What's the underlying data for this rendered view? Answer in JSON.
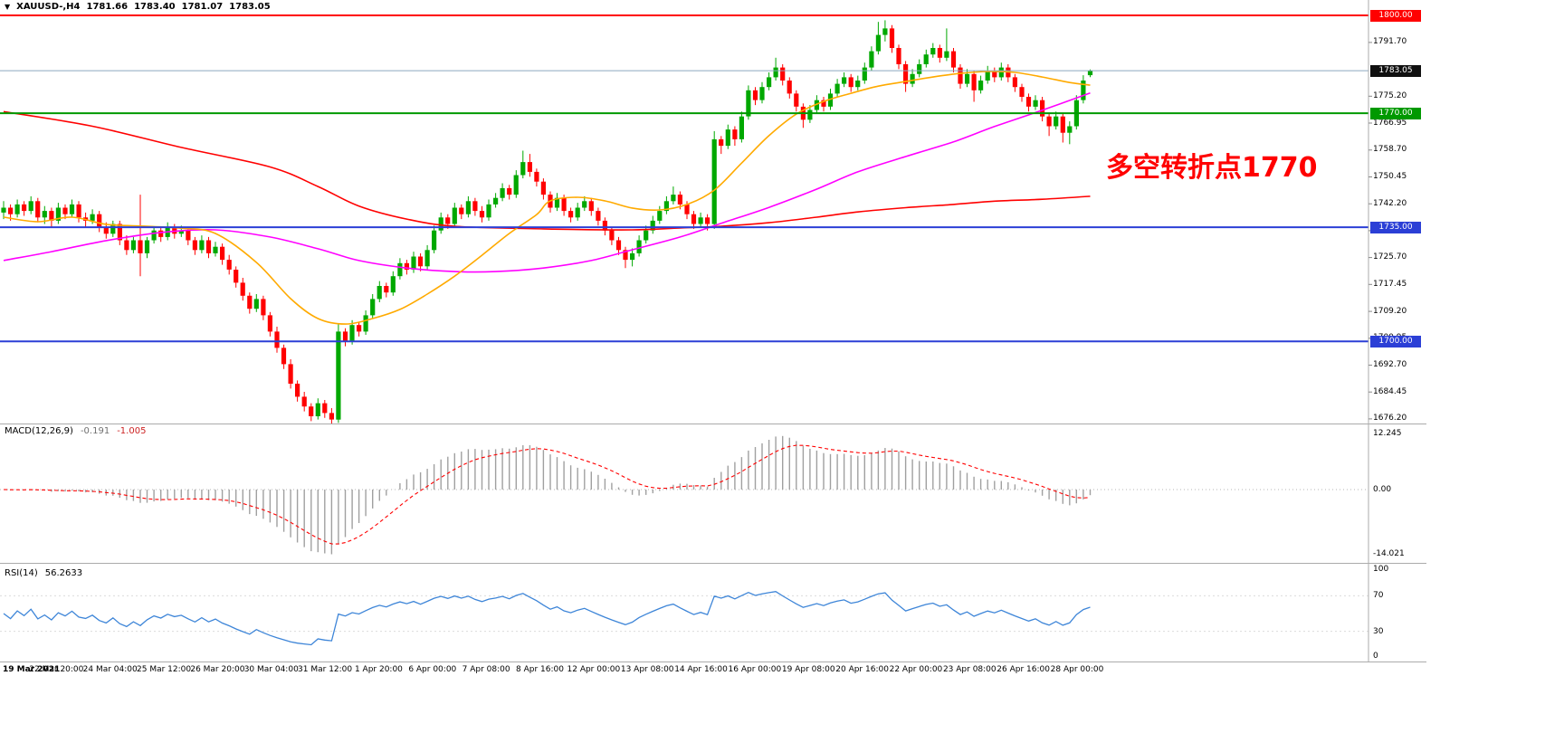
{
  "header": {
    "dropdown_icon": "▼",
    "symbol": "XAUUSD-,H4",
    "open": "1781.66",
    "high": "1783.40",
    "low": "1781.07",
    "close": "1783.05"
  },
  "annotation": {
    "text": "多空转折点1770",
    "color": "#ff0000"
  },
  "colors": {
    "up_candle": "#00a800",
    "down_candle": "#ff0000",
    "macd_histogram": "#a0a0a0",
    "macd_signal": "#ff0000",
    "rsi_line": "#3d85d8",
    "separator": "#ababab"
  },
  "chart_data": {
    "type": "candlestick",
    "symbol": "XAUUSD-",
    "timeframe": "H4",
    "title": "XAUUSD-,H4",
    "current_bar": {
      "open": 1781.66,
      "high": 1783.4,
      "low": 1781.07,
      "close": 1783.05
    },
    "price_range": [
      1674.8,
      1800.8
    ],
    "y_axis_ticks": [
      "1791.70",
      "1775.20",
      "1766.95",
      "1758.70",
      "1750.45",
      "1742.20",
      "1733.95",
      "1725.70",
      "1717.45",
      "1709.20",
      "1700.95",
      "1692.70",
      "1684.45",
      "1676.20"
    ],
    "x_axis_labels": [
      "19 Mar 2021",
      "22 Mar 20:00",
      "24 Mar 04:00",
      "25 Mar 12:00",
      "26 Mar 20:00",
      "30 Mar 04:00",
      "31 Mar 12:00",
      "1 Apr 20:00",
      "6 Apr 00:00",
      "7 Apr 08:00",
      "8 Apr 16:00",
      "12 Apr 00:00",
      "13 Apr 08:00",
      "14 Apr 16:00",
      "16 Apr 00:00",
      "19 Apr 08:00",
      "20 Apr 16:00",
      "22 Apr 00:00",
      "23 Apr 08:00",
      "26 Apr 16:00",
      "28 Apr 00:00"
    ],
    "price_lines": [
      {
        "label": "1800.00",
        "value": 1800,
        "color": "#ff0000"
      },
      {
        "label": "1770.00",
        "value": 1770,
        "color": "#009900"
      },
      {
        "label": "1735.00",
        "value": 1735,
        "color": "#2b3fd6"
      },
      {
        "label": "1700.00",
        "value": 1700,
        "color": "#2b3fd6"
      }
    ],
    "current_price_line": {
      "label": "1783.05",
      "value": 1783.05,
      "line_color": "#8ca6bf",
      "badge_color": "#101010"
    },
    "macd": {
      "label": "MACD(12,26,9)",
      "fast": 12,
      "slow": 26,
      "signal": 9,
      "value_main": "-0.191",
      "value_signal": "-1.005",
      "scale_labels": [
        "12.245",
        "0.00",
        "-14.021"
      ],
      "range": [
        -14.021,
        12.245
      ]
    },
    "rsi": {
      "label": "RSI(14)",
      "period": 14,
      "value": "56.2633",
      "scale_labels": [
        "100",
        "70",
        "30",
        "0"
      ],
      "levels": [
        70,
        30
      ],
      "range": [
        0,
        100
      ]
    },
    "moving_averages": [
      {
        "name": "ma-slow-red-line",
        "color": "#ff0000",
        "points": [
          [
            0,
            1770.5
          ],
          [
            13,
            1766
          ],
          [
            26,
            1759.5
          ],
          [
            39,
            1753.5
          ],
          [
            46,
            1747.5
          ],
          [
            52,
            1741.5
          ],
          [
            59,
            1737.5
          ],
          [
            66,
            1735.3
          ],
          [
            79,
            1734.5
          ],
          [
            92,
            1734.2
          ],
          [
            99,
            1734.8
          ],
          [
            105,
            1735.3
          ],
          [
            112,
            1736.4
          ],
          [
            119,
            1738.1
          ],
          [
            125,
            1739.7
          ],
          [
            132,
            1741
          ],
          [
            139,
            1742
          ],
          [
            145,
            1743
          ],
          [
            152,
            1743.6
          ],
          [
            159,
            1744.5
          ]
        ]
      },
      {
        "name": "ma-mid-magenta-line",
        "color": "#ff00ff",
        "points": [
          [
            0,
            1724.8
          ],
          [
            7,
            1727.5
          ],
          [
            15,
            1730.9
          ],
          [
            23,
            1733.4
          ],
          [
            31,
            1734.2
          ],
          [
            39,
            1732
          ],
          [
            46,
            1728.4
          ],
          [
            52,
            1724.8
          ],
          [
            59,
            1722.5
          ],
          [
            66,
            1721.4
          ],
          [
            72,
            1721.4
          ],
          [
            79,
            1722.5
          ],
          [
            86,
            1724.8
          ],
          [
            92,
            1728.1
          ],
          [
            99,
            1732
          ],
          [
            105,
            1736.2
          ],
          [
            112,
            1741.1
          ],
          [
            119,
            1746.7
          ],
          [
            125,
            1752
          ],
          [
            132,
            1756.7
          ],
          [
            139,
            1761.2
          ],
          [
            145,
            1765.9
          ],
          [
            152,
            1770.9
          ],
          [
            159,
            1776.2
          ]
        ]
      },
      {
        "name": "ma-fast-orange-line",
        "color": "#ffaa00",
        "points": [
          [
            0,
            1738.1
          ],
          [
            5,
            1736.7
          ],
          [
            10,
            1738.1
          ],
          [
            15,
            1735.9
          ],
          [
            21,
            1735.3
          ],
          [
            26,
            1734.7
          ],
          [
            31,
            1733.1
          ],
          [
            37,
            1724.2
          ],
          [
            42,
            1713.1
          ],
          [
            46,
            1707
          ],
          [
            50,
            1705.3
          ],
          [
            54,
            1707
          ],
          [
            58,
            1709.8
          ],
          [
            62,
            1714.5
          ],
          [
            66,
            1720
          ],
          [
            70,
            1726.4
          ],
          [
            74,
            1733.1
          ],
          [
            78,
            1738.9
          ],
          [
            80,
            1743.1
          ],
          [
            84,
            1744.2
          ],
          [
            88,
            1743.1
          ],
          [
            92,
            1740.9
          ],
          [
            96,
            1740.3
          ],
          [
            100,
            1742
          ],
          [
            104,
            1746.4
          ],
          [
            108,
            1754.7
          ],
          [
            112,
            1763.1
          ],
          [
            116,
            1769.7
          ],
          [
            120,
            1773.6
          ],
          [
            124,
            1776.1
          ],
          [
            128,
            1778.3
          ],
          [
            132,
            1779.7
          ],
          [
            136,
            1781.1
          ],
          [
            140,
            1782.2
          ],
          [
            144,
            1782.8
          ],
          [
            148,
            1782.5
          ],
          [
            152,
            1781.1
          ],
          [
            156,
            1779.4
          ],
          [
            159,
            1778.6
          ]
        ]
      }
    ],
    "candles": [
      [
        1739.5,
        1743,
        1737.5,
        1741
      ],
      [
        1741,
        1742,
        1737,
        1739
      ],
      [
        1739,
        1743.5,
        1738,
        1742
      ],
      [
        1742,
        1743,
        1738.5,
        1740
      ],
      [
        1740,
        1744.5,
        1739,
        1743
      ],
      [
        1743,
        1744,
        1736.5,
        1738
      ],
      [
        1738,
        1741.5,
        1736,
        1740
      ],
      [
        1740,
        1741,
        1735,
        1737
      ],
      [
        1737,
        1742.5,
        1736,
        1741
      ],
      [
        1741,
        1742,
        1737.5,
        1739
      ],
      [
        1739,
        1743.5,
        1738,
        1742
      ],
      [
        1742,
        1743,
        1736.5,
        1738
      ],
      [
        1738,
        1739.5,
        1735,
        1737
      ],
      [
        1737,
        1740.5,
        1736,
        1739
      ],
      [
        1739,
        1740,
        1733.5,
        1735
      ],
      [
        1735,
        1736.5,
        1731.5,
        1733
      ],
      [
        1733,
        1737,
        1732,
        1736
      ],
      [
        1736,
        1737,
        1729.5,
        1731
      ],
      [
        1731,
        1732.5,
        1726.5,
        1728
      ],
      [
        1728,
        1732,
        1727,
        1731
      ],
      [
        1731,
        1745,
        1720,
        1727
      ],
      [
        1727,
        1732,
        1725.5,
        1731
      ],
      [
        1731,
        1735,
        1730,
        1734
      ],
      [
        1734,
        1735,
        1730.5,
        1732
      ],
      [
        1732,
        1736.5,
        1731,
        1735
      ],
      [
        1735,
        1736,
        1731.5,
        1733
      ],
      [
        1733,
        1735.5,
        1732,
        1734
      ],
      [
        1734,
        1735,
        1729.5,
        1731
      ],
      [
        1731,
        1732,
        1726.5,
        1728
      ],
      [
        1728,
        1732.5,
        1727,
        1731
      ],
      [
        1731,
        1732,
        1725.5,
        1727
      ],
      [
        1727,
        1730.5,
        1726,
        1729
      ],
      [
        1729,
        1730,
        1723.5,
        1725
      ],
      [
        1725,
        1726.5,
        1720.5,
        1722
      ],
      [
        1722,
        1723,
        1716.5,
        1718
      ],
      [
        1718,
        1719.5,
        1712.5,
        1714
      ],
      [
        1714,
        1715,
        1708.5,
        1710
      ],
      [
        1710,
        1714.5,
        1709,
        1713
      ],
      [
        1713,
        1714,
        1706.5,
        1708
      ],
      [
        1708,
        1709,
        1701.5,
        1703
      ],
      [
        1703,
        1704.5,
        1696.5,
        1698
      ],
      [
        1698,
        1699,
        1691.5,
        1693
      ],
      [
        1693,
        1694.5,
        1685.5,
        1687
      ],
      [
        1687,
        1688,
        1681.5,
        1683
      ],
      [
        1683,
        1684.5,
        1678.5,
        1680
      ],
      [
        1680,
        1681,
        1675.5,
        1677
      ],
      [
        1677,
        1682.5,
        1676,
        1681
      ],
      [
        1681,
        1682,
        1676.5,
        1678
      ],
      [
        1678,
        1679.5,
        1674.8,
        1676
      ],
      [
        1676,
        1705.5,
        1675,
        1703
      ],
      [
        1703,
        1704,
        1698.5,
        1700
      ],
      [
        1700,
        1706.5,
        1699,
        1705
      ],
      [
        1705,
        1706,
        1701.5,
        1703
      ],
      [
        1703,
        1709.5,
        1702,
        1708
      ],
      [
        1708,
        1714.5,
        1707,
        1713
      ],
      [
        1713,
        1718.5,
        1712,
        1717
      ],
      [
        1717,
        1718,
        1713.5,
        1715
      ],
      [
        1715,
        1721.5,
        1714,
        1720
      ],
      [
        1720,
        1725.5,
        1719,
        1724
      ],
      [
        1724,
        1725,
        1720.5,
        1722
      ],
      [
        1722,
        1727.5,
        1721,
        1726
      ],
      [
        1726,
        1727,
        1721.5,
        1723
      ],
      [
        1723,
        1729.5,
        1722,
        1728
      ],
      [
        1728,
        1735.5,
        1727,
        1734
      ],
      [
        1734,
        1739.5,
        1733,
        1738
      ],
      [
        1738,
        1739,
        1734.5,
        1736
      ],
      [
        1736,
        1742.5,
        1735,
        1741
      ],
      [
        1741,
        1742,
        1737.5,
        1739
      ],
      [
        1739,
        1744.5,
        1738,
        1743
      ],
      [
        1743,
        1744,
        1738.5,
        1740
      ],
      [
        1740,
        1741.5,
        1736.5,
        1738
      ],
      [
        1738,
        1743.5,
        1737,
        1742
      ],
      [
        1742,
        1745.5,
        1741,
        1744
      ],
      [
        1744,
        1748.5,
        1743,
        1747
      ],
      [
        1747,
        1748,
        1743.5,
        1745
      ],
      [
        1745,
        1752.5,
        1744,
        1751
      ],
      [
        1751,
        1758.5,
        1750,
        1755
      ],
      [
        1755,
        1757.5,
        1750.5,
        1752
      ],
      [
        1752,
        1753,
        1747.5,
        1749
      ],
      [
        1749,
        1750,
        1743.5,
        1745
      ],
      [
        1745,
        1746,
        1739.5,
        1741
      ],
      [
        1741,
        1745.5,
        1740,
        1744
      ],
      [
        1744,
        1745,
        1738.5,
        1740
      ],
      [
        1740,
        1741,
        1736.5,
        1738
      ],
      [
        1738,
        1742.5,
        1737,
        1741
      ],
      [
        1741,
        1744.5,
        1740,
        1743
      ],
      [
        1743,
        1744,
        1738.5,
        1740
      ],
      [
        1740,
        1741,
        1735.5,
        1737
      ],
      [
        1737,
        1738,
        1732.5,
        1734
      ],
      [
        1734,
        1735,
        1729.5,
        1731
      ],
      [
        1731,
        1732,
        1726.5,
        1728
      ],
      [
        1728,
        1729,
        1722.5,
        1725
      ],
      [
        1725,
        1728.5,
        1723,
        1727
      ],
      [
        1727,
        1732.5,
        1726,
        1731
      ],
      [
        1731,
        1735.5,
        1730,
        1734
      ],
      [
        1734,
        1738.5,
        1733,
        1737
      ],
      [
        1737,
        1741.5,
        1736,
        1740
      ],
      [
        1740,
        1744.5,
        1739,
        1743
      ],
      [
        1743,
        1747.5,
        1742,
        1745
      ],
      [
        1745,
        1746,
        1740.5,
        1742
      ],
      [
        1742,
        1743,
        1737.5,
        1739
      ],
      [
        1739,
        1740,
        1734.5,
        1736
      ],
      [
        1736,
        1739.5,
        1735,
        1738
      ],
      [
        1738,
        1739,
        1734,
        1736
      ],
      [
        1736,
        1764.5,
        1734.5,
        1762
      ],
      [
        1762,
        1763,
        1757.5,
        1760
      ],
      [
        1760,
        1766.5,
        1759,
        1765
      ],
      [
        1765,
        1766,
        1760,
        1762
      ],
      [
        1762,
        1770.5,
        1761,
        1769
      ],
      [
        1769,
        1778.5,
        1768,
        1777
      ],
      [
        1777,
        1778,
        1772.5,
        1774
      ],
      [
        1774,
        1779.5,
        1773,
        1778
      ],
      [
        1778,
        1782.5,
        1777,
        1781
      ],
      [
        1781,
        1787,
        1780,
        1784
      ],
      [
        1784,
        1785,
        1778.5,
        1780
      ],
      [
        1780,
        1781,
        1774.5,
        1776
      ],
      [
        1776,
        1777,
        1770.5,
        1772
      ],
      [
        1772,
        1773,
        1765.5,
        1768
      ],
      [
        1768,
        1772.5,
        1767,
        1771
      ],
      [
        1771,
        1775.5,
        1770,
        1774
      ],
      [
        1774,
        1775,
        1770.5,
        1772
      ],
      [
        1772,
        1777.5,
        1771,
        1776
      ],
      [
        1776,
        1780.5,
        1775,
        1779
      ],
      [
        1779,
        1782.5,
        1778,
        1781
      ],
      [
        1781,
        1782,
        1776.5,
        1778
      ],
      [
        1778,
        1781.5,
        1777,
        1780
      ],
      [
        1780,
        1785.5,
        1779,
        1784
      ],
      [
        1784,
        1790.5,
        1783,
        1789
      ],
      [
        1789,
        1798,
        1788,
        1794
      ],
      [
        1794,
        1798.5,
        1792,
        1796
      ],
      [
        1796,
        1797,
        1788.5,
        1790
      ],
      [
        1790,
        1791,
        1783.5,
        1785
      ],
      [
        1785,
        1786,
        1776.5,
        1779
      ],
      [
        1779,
        1783.5,
        1778,
        1782
      ],
      [
        1782,
        1786.5,
        1781,
        1785
      ],
      [
        1785,
        1789.5,
        1784,
        1788
      ],
      [
        1788,
        1791.5,
        1787,
        1790
      ],
      [
        1790,
        1791,
        1785.5,
        1787
      ],
      [
        1787,
        1796,
        1786,
        1789
      ],
      [
        1789,
        1790,
        1782.5,
        1784
      ],
      [
        1784,
        1785,
        1777.5,
        1779
      ],
      [
        1779,
        1783.5,
        1778,
        1782
      ],
      [
        1782,
        1783,
        1773.5,
        1777
      ],
      [
        1777,
        1781.5,
        1776,
        1780
      ],
      [
        1780,
        1784.5,
        1779,
        1783
      ],
      [
        1783,
        1784,
        1779.5,
        1781
      ],
      [
        1781,
        1785.5,
        1780,
        1784
      ],
      [
        1784,
        1785,
        1779.5,
        1781
      ],
      [
        1781,
        1782,
        1776.5,
        1778
      ],
      [
        1778,
        1779,
        1773.5,
        1775
      ],
      [
        1775,
        1776,
        1770.5,
        1772
      ],
      [
        1772,
        1775.5,
        1771,
        1774
      ],
      [
        1774,
        1775,
        1767.5,
        1769
      ],
      [
        1769,
        1770,
        1763,
        1766
      ],
      [
        1766,
        1770.5,
        1765,
        1769
      ],
      [
        1769,
        1770,
        1761,
        1764
      ],
      [
        1764,
        1767.5,
        1760.5,
        1766
      ],
      [
        1766,
        1775.5,
        1765,
        1774
      ],
      [
        1774,
        1781.66,
        1773,
        1780
      ],
      [
        1781.66,
        1783.4,
        1781.07,
        1783.05
      ]
    ]
  }
}
